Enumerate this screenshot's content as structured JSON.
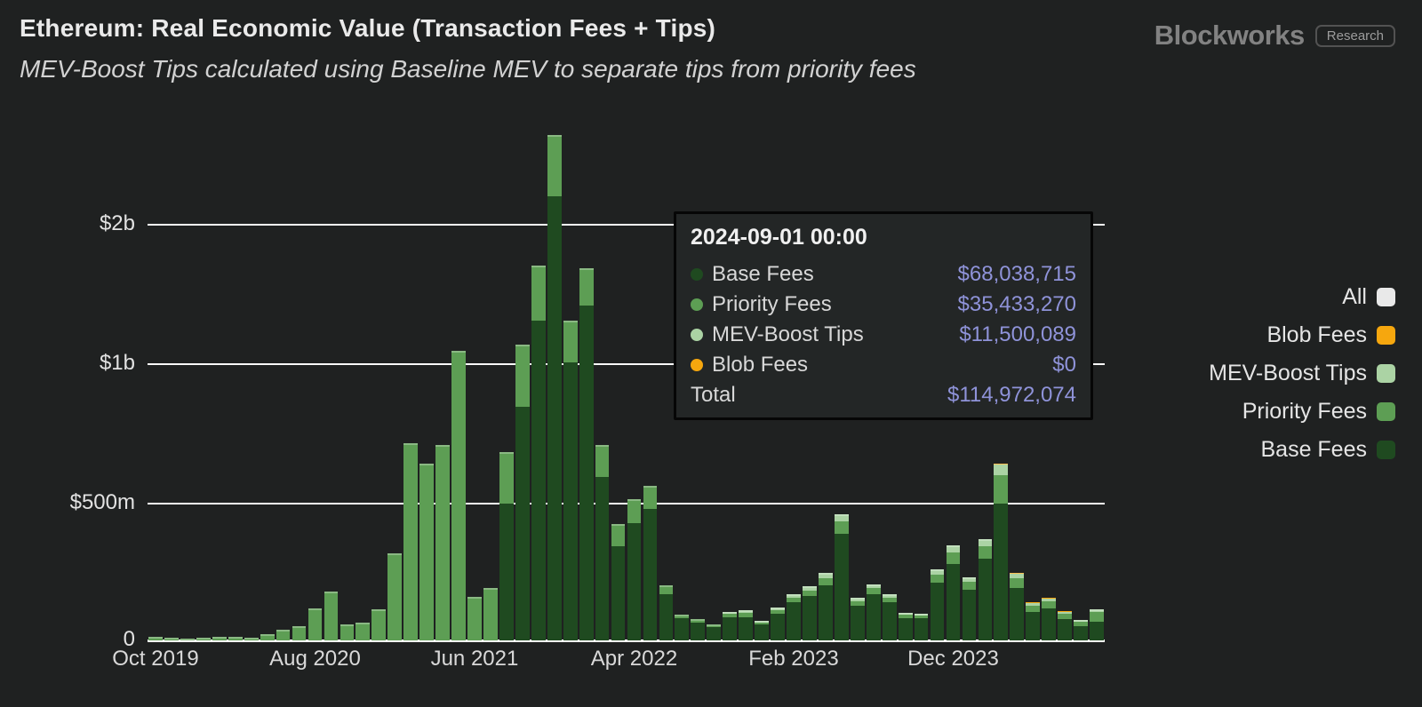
{
  "header": {
    "title": "Ethereum: Real Economic Value (Transaction Fees + Tips)",
    "subtitle": "MEV-Boost Tips calculated using Baseline MEV to separate tips from priority fees",
    "brand": "Blockworks",
    "brand_badge": "Research"
  },
  "legend": {
    "items": [
      {
        "label": "All",
        "color": "#e9e9e9"
      },
      {
        "label": "Blob Fees",
        "color": "#f6a70e"
      },
      {
        "label": "MEV-Boost Tips",
        "color": "#abd3a4"
      },
      {
        "label": "Priority Fees",
        "color": "#5d9e54"
      },
      {
        "label": "Base Fees",
        "color": "#1f4a20"
      }
    ]
  },
  "tooltip": {
    "title": "2024-09-01 00:00",
    "rows": [
      {
        "label": "Base Fees",
        "value": "$68,038,715",
        "color": "#1f4a20"
      },
      {
        "label": "Priority Fees",
        "value": "$35,433,270",
        "color": "#5d9e54"
      },
      {
        "label": "MEV-Boost Tips",
        "value": "$11,500,089",
        "color": "#abd3a4"
      },
      {
        "label": "Blob Fees",
        "value": "$0",
        "color": "#f6a70e"
      }
    ],
    "total_label": "Total",
    "total_value": "$114,972,074"
  },
  "chart_data": {
    "type": "bar",
    "stacked": true,
    "title": "Ethereum: Real Economic Value (Transaction Fees + Tips)",
    "subtitle": "MEV-Boost Tips calculated using Baseline MEV to separate tips from priority fees",
    "unit": "USD millions per month",
    "scale_note": "y axis is non-linear: ~equal pixel spacing per doubling above $500m",
    "y_ticks": [
      {
        "label": "$2b",
        "value": 2000
      },
      {
        "label": "$1b",
        "value": 1000
      },
      {
        "label": "$500m",
        "value": 500
      },
      {
        "label": "0",
        "value": 0
      }
    ],
    "x_ticks": [
      {
        "index": 0,
        "label": "Oct 2019"
      },
      {
        "index": 10,
        "label": "Aug 2020"
      },
      {
        "index": 20,
        "label": "Jun 2021"
      },
      {
        "index": 30,
        "label": "Apr 2022"
      },
      {
        "index": 40,
        "label": "Feb 2023"
      },
      {
        "index": 50,
        "label": "Dec 2023"
      }
    ],
    "series": [
      {
        "name": "Base Fees",
        "key": "base",
        "color": "#1f4a20"
      },
      {
        "name": "Priority Fees",
        "key": "priority",
        "color": "#5d9e54"
      },
      {
        "name": "MEV-Boost Tips",
        "key": "mev",
        "color": "#abd3a4"
      },
      {
        "name": "Blob Fees",
        "key": "blob",
        "color": "#f6a70e"
      }
    ],
    "columns": [
      "month",
      "base",
      "priority",
      "mev",
      "blob"
    ],
    "months": [
      [
        "2019-10",
        0,
        12,
        0,
        0
      ],
      [
        "2019-11",
        0,
        10,
        0,
        0
      ],
      [
        "2019-12",
        0,
        8,
        0,
        0
      ],
      [
        "2020-01",
        0,
        9,
        0,
        0
      ],
      [
        "2020-02",
        0,
        13,
        0,
        0
      ],
      [
        "2020-03",
        0,
        14,
        0,
        0
      ],
      [
        "2020-04",
        0,
        10,
        0,
        0
      ],
      [
        "2020-05",
        0,
        22,
        0,
        0
      ],
      [
        "2020-06",
        0,
        38,
        0,
        0
      ],
      [
        "2020-07",
        0,
        52,
        0,
        0
      ],
      [
        "2020-08",
        0,
        118,
        0,
        0
      ],
      [
        "2020-09",
        0,
        180,
        0,
        0
      ],
      [
        "2020-10",
        0,
        60,
        0,
        0
      ],
      [
        "2020-11",
        0,
        66,
        0,
        0
      ],
      [
        "2020-12",
        0,
        115,
        0,
        0
      ],
      [
        "2021-01",
        0,
        318,
        0,
        0
      ],
      [
        "2021-02",
        0,
        676,
        0,
        0
      ],
      [
        "2021-03",
        0,
        610,
        0,
        0
      ],
      [
        "2021-04",
        0,
        670,
        0,
        0
      ],
      [
        "2021-05",
        0,
        1070,
        0,
        0
      ],
      [
        "2021-06",
        0,
        160,
        0,
        0
      ],
      [
        "2021-07",
        0,
        192,
        0,
        0
      ],
      [
        "2021-08",
        500,
        146,
        0,
        0
      ],
      [
        "2021-09",
        810,
        290,
        0,
        0
      ],
      [
        "2021-10",
        1240,
        390,
        0,
        0
      ],
      [
        "2021-11",
        2300,
        830,
        0,
        0
      ],
      [
        "2021-12",
        1010,
        230,
        0,
        0
      ],
      [
        "2022-01",
        1340,
        270,
        0,
        0
      ],
      [
        "2022-02",
        570,
        100,
        0,
        0
      ],
      [
        "2022-03",
        344,
        81,
        0,
        0
      ],
      [
        "2022-04",
        429,
        82,
        0,
        0
      ],
      [
        "2022-05",
        480,
        66,
        0,
        0
      ],
      [
        "2022-06",
        170,
        31,
        0,
        0
      ],
      [
        "2022-07",
        80,
        14,
        0,
        0
      ],
      [
        "2022-08",
        66,
        12,
        0,
        0
      ],
      [
        "2022-09",
        50,
        8,
        0,
        0
      ],
      [
        "2022-10",
        84,
        12,
        8,
        0
      ],
      [
        "2022-11",
        86,
        14,
        10,
        0
      ],
      [
        "2022-12",
        58,
        7,
        6,
        0
      ],
      [
        "2023-01",
        98,
        12,
        10,
        0
      ],
      [
        "2023-02",
        138,
        18,
        13,
        0
      ],
      [
        "2023-03",
        162,
        20,
        16,
        0
      ],
      [
        "2023-04",
        200,
        27,
        20,
        0
      ],
      [
        "2023-05",
        390,
        45,
        26,
        0
      ],
      [
        "2023-06",
        128,
        16,
        12,
        0
      ],
      [
        "2023-07",
        168,
        22,
        15,
        0
      ],
      [
        "2023-08",
        140,
        17,
        12,
        0
      ],
      [
        "2023-09",
        82,
        11,
        7,
        0
      ],
      [
        "2023-10",
        80,
        10,
        7,
        0
      ],
      [
        "2023-11",
        210,
        30,
        20,
        0
      ],
      [
        "2023-12",
        280,
        42,
        25,
        0
      ],
      [
        "2024-01",
        185,
        28,
        17,
        0
      ],
      [
        "2024-02",
        300,
        44,
        26,
        0
      ],
      [
        "2024-03",
        500,
        75,
        32,
        3
      ],
      [
        "2024-04",
        190,
        38,
        17,
        2
      ],
      [
        "2024-05",
        105,
        22,
        12,
        1
      ],
      [
        "2024-06",
        118,
        25,
        12,
        1
      ],
      [
        "2024-07",
        78,
        19,
        9,
        1
      ],
      [
        "2024-08",
        52,
        15,
        8,
        0.5
      ],
      [
        "2024-09",
        68.04,
        35.43,
        11.5,
        0
      ]
    ],
    "hovered_month": "2024-09"
  }
}
